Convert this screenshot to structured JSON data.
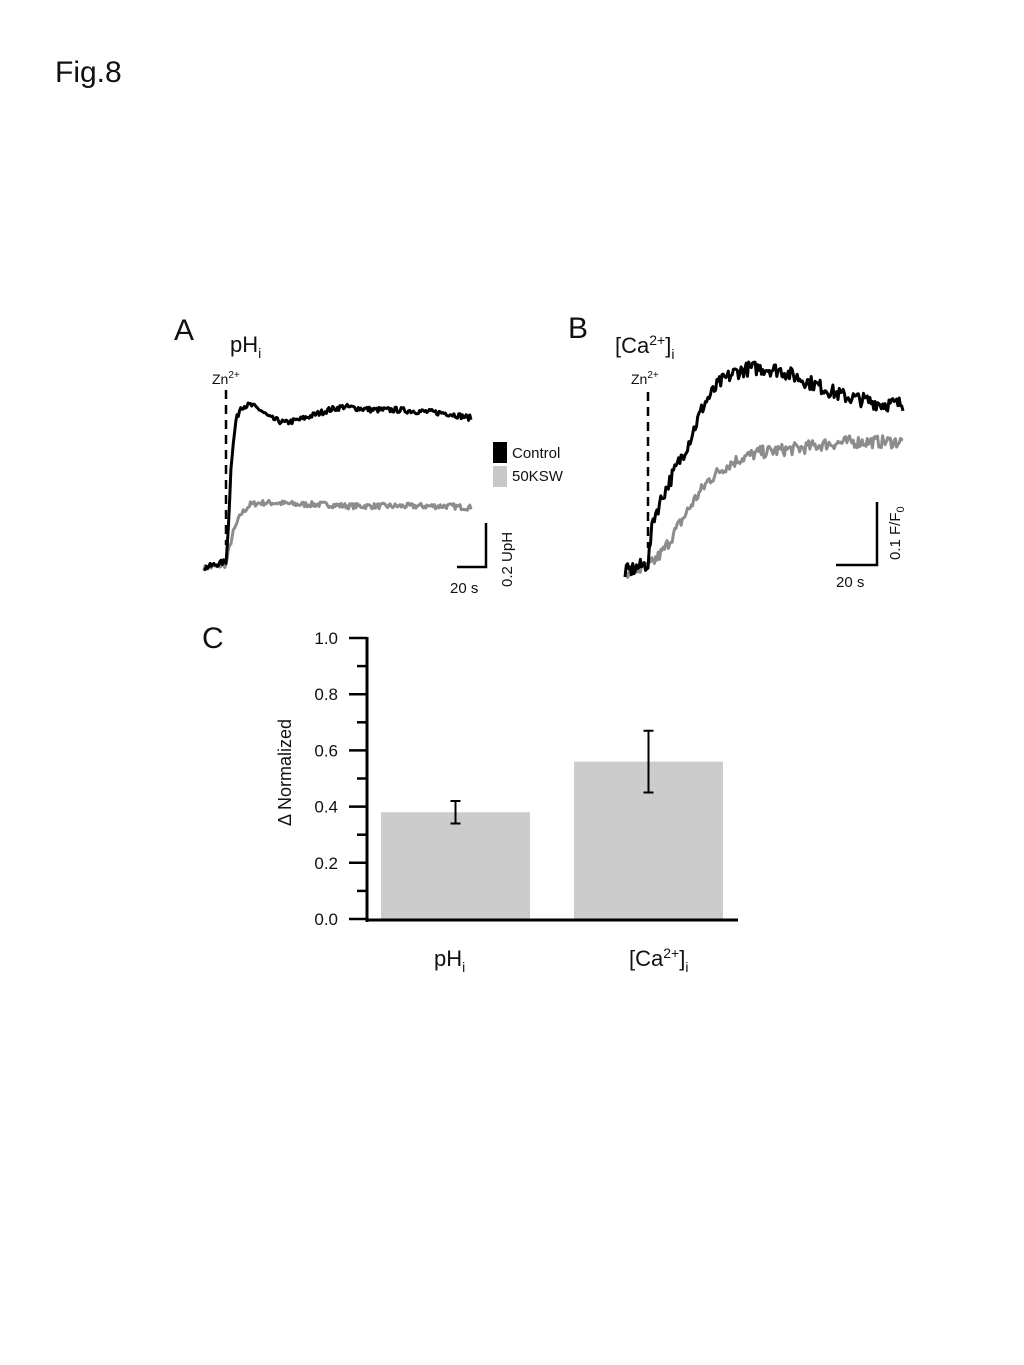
{
  "figure": {
    "title": "Fig.8"
  },
  "panel_a": {
    "letter": "A",
    "title_main": "pH",
    "title_sub": "i",
    "stim_main": "Zn",
    "stim_sup": "2+"
  },
  "panel_b": {
    "letter": "B",
    "title_main": "[Ca",
    "title_sup": "2+",
    "title_close": "]",
    "title_sub": "i",
    "stim_main": "Zn",
    "stim_sup": "2+"
  },
  "panel_c": {
    "letter": "C"
  },
  "legend": {
    "items": [
      {
        "label": "Control",
        "color": "#000000"
      },
      {
        "label": "50KSW",
        "color": "#c8c8c8"
      }
    ]
  },
  "scalebars": {
    "a_time": "20 s",
    "a_amp": "0.2 UpH",
    "b_time": "20 s",
    "b_amp_main": "0.1 F/F",
    "b_amp_sub": "0"
  },
  "colors": {
    "control": "#000000",
    "ksw": "#8c8c8c",
    "bar": "#cccccc"
  },
  "chart_data": [
    {
      "type": "line",
      "panel": "A",
      "title": "pHi",
      "stimulus": "Zn2+",
      "series": [
        {
          "name": "Control",
          "points": [
            [
              -9,
              0.0
            ],
            [
              0,
              0.04
            ],
            [
              1,
              0.25
            ],
            [
              2,
              0.62
            ],
            [
              4,
              0.9
            ],
            [
              6,
              0.99
            ],
            [
              10,
              1.0
            ],
            [
              14,
              0.97
            ],
            [
              18,
              0.92
            ],
            [
              24,
              0.89
            ],
            [
              30,
              0.91
            ],
            [
              36,
              0.94
            ],
            [
              42,
              0.97
            ],
            [
              48,
              0.99
            ],
            [
              54,
              0.98
            ],
            [
              60,
              0.97
            ],
            [
              70,
              0.97
            ],
            [
              80,
              0.96
            ],
            [
              90,
              0.95
            ],
            [
              100,
              0.92
            ]
          ]
        },
        {
          "name": "50KSW",
          "points": [
            [
              -9,
              0.0
            ],
            [
              0,
              0.02
            ],
            [
              1,
              0.1
            ],
            [
              3,
              0.22
            ],
            [
              6,
              0.33
            ],
            [
              10,
              0.39
            ],
            [
              14,
              0.4
            ],
            [
              20,
              0.4
            ],
            [
              30,
              0.39
            ],
            [
              40,
              0.39
            ],
            [
              50,
              0.38
            ],
            [
              60,
              0.38
            ],
            [
              70,
              0.38
            ],
            [
              80,
              0.38
            ],
            [
              90,
              0.38
            ],
            [
              100,
              0.37
            ]
          ]
        }
      ]
    },
    {
      "type": "line",
      "panel": "B",
      "title": "[Ca2+]i",
      "stimulus": "Zn2+",
      "series": [
        {
          "name": "Control",
          "points": [
            [
              -9,
              0.0
            ],
            [
              0,
              0.04
            ],
            [
              2,
              0.25
            ],
            [
              6,
              0.37
            ],
            [
              10,
              0.47
            ],
            [
              16,
              0.62
            ],
            [
              22,
              0.8
            ],
            [
              28,
              0.9
            ],
            [
              34,
              0.95
            ],
            [
              40,
              0.97
            ],
            [
              46,
              0.97
            ],
            [
              52,
              0.96
            ],
            [
              60,
              0.92
            ],
            [
              68,
              0.88
            ],
            [
              76,
              0.84
            ],
            [
              84,
              0.82
            ],
            [
              92,
              0.8
            ],
            [
              100,
              0.8
            ]
          ]
        },
        {
          "name": "50KSW",
          "points": [
            [
              -9,
              0.0
            ],
            [
              0,
              0.02
            ],
            [
              6,
              0.1
            ],
            [
              12,
              0.22
            ],
            [
              18,
              0.34
            ],
            [
              24,
              0.44
            ],
            [
              30,
              0.5
            ],
            [
              36,
              0.54
            ],
            [
              44,
              0.57
            ],
            [
              52,
              0.58
            ],
            [
              60,
              0.59
            ],
            [
              70,
              0.61
            ],
            [
              80,
              0.62
            ],
            [
              90,
              0.62
            ],
            [
              100,
              0.62
            ]
          ]
        }
      ]
    },
    {
      "type": "bar",
      "panel": "C",
      "categories": [
        {
          "main": "pH",
          "sub": "i"
        },
        {
          "main": "[Ca",
          "sup": "2+",
          "close": "]",
          "sub": "i"
        }
      ],
      "values": [
        0.38,
        0.56
      ],
      "errors": [
        0.04,
        0.11
      ],
      "ylabel": "Δ Normalized",
      "ylim": [
        0.0,
        1.0
      ],
      "yticks": [
        "0.0",
        "0.2",
        "0.4",
        "0.6",
        "0.8",
        "1.0"
      ],
      "ytick_values": [
        0.0,
        0.2,
        0.4,
        0.6,
        0.8,
        1.0
      ]
    }
  ]
}
